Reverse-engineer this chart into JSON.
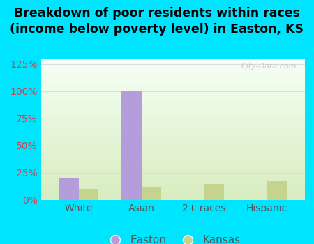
{
  "categories": [
    "White",
    "Asian",
    "2+ races",
    "Hispanic"
  ],
  "easton_values": [
    20,
    100,
    0,
    0
  ],
  "kansas_values": [
    10,
    12,
    15,
    18
  ],
  "easton_color": "#b39ddb",
  "kansas_color": "#c5d48c",
  "title": "Breakdown of poor residents within races\n(income below poverty level) in Easton, KS",
  "title_fontsize": 12.5,
  "title_fontweight": "bold",
  "ylim": [
    0,
    130
  ],
  "yticks": [
    0,
    25,
    50,
    75,
    100,
    125
  ],
  "ytick_labels": [
    "0%",
    "25%",
    "50%",
    "75%",
    "100%",
    "125%"
  ],
  "bar_width": 0.32,
  "background_outer": "#00e5ff",
  "background_inner_top": "#f5fff5",
  "background_inner_bottom": "#d8edc0",
  "grid_color": "#dddddd",
  "ytick_color": "#cc4444",
  "xtick_color": "#555555",
  "legend_labels": [
    "Easton",
    "Kansas"
  ],
  "watermark": "City-Data.com"
}
